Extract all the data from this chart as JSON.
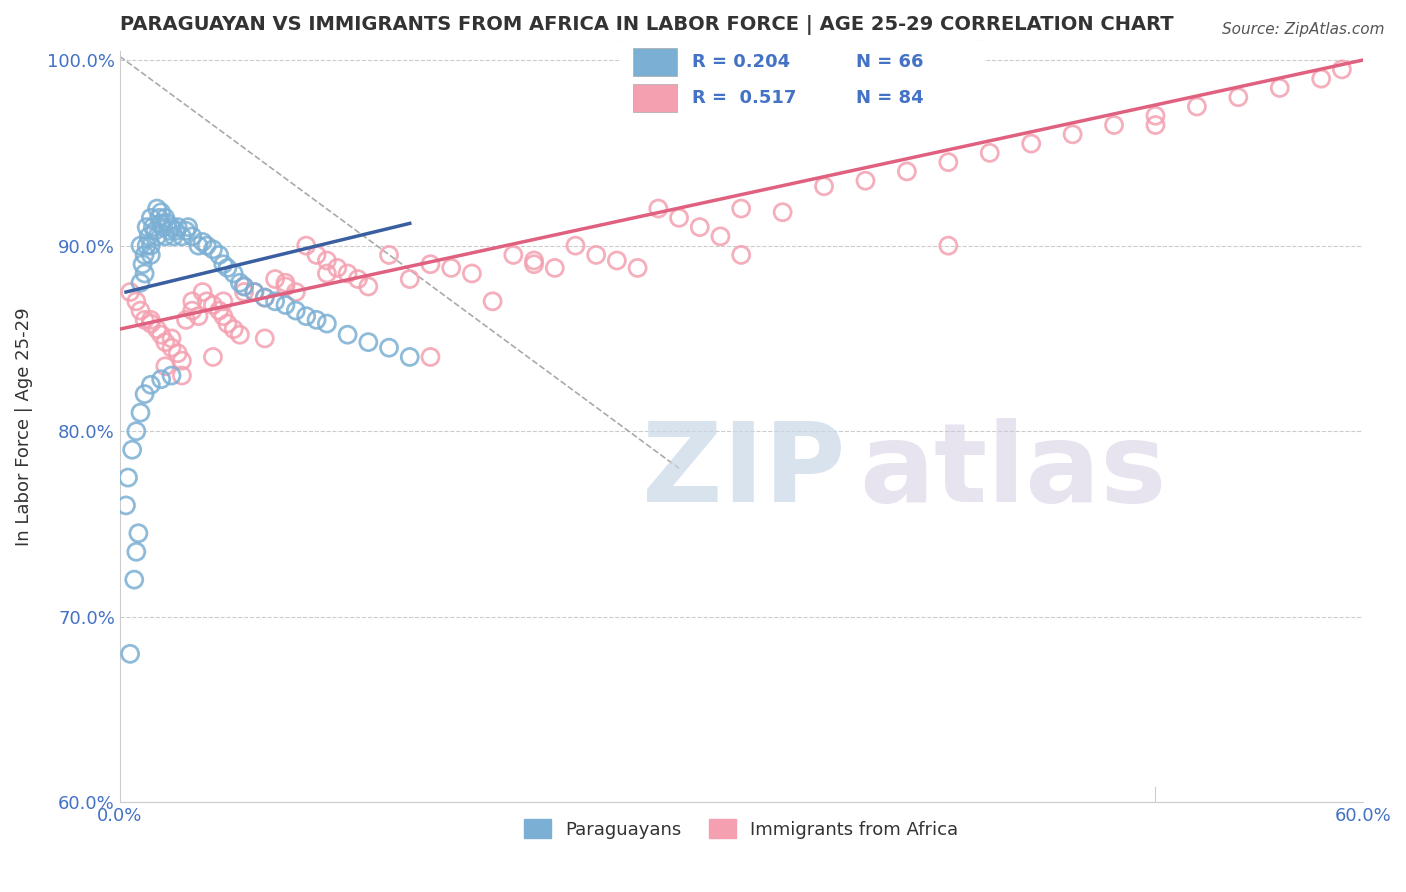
{
  "title": "PARAGUAYAN VS IMMIGRANTS FROM AFRICA IN LABOR FORCE | AGE 25-29 CORRELATION CHART",
  "source": "Source: ZipAtlas.com",
  "ylabel": "In Labor Force | Age 25-29",
  "xlim": [
    0.0,
    0.6
  ],
  "ylim": [
    0.6,
    1.005
  ],
  "xticks": [
    0.0,
    0.1,
    0.2,
    0.3,
    0.4,
    0.5,
    0.6
  ],
  "xticklabels": [
    "0.0%",
    "",
    "",
    "",
    "",
    "",
    "60.0%"
  ],
  "yticks": [
    0.6,
    0.7,
    0.8,
    0.9,
    1.0
  ],
  "yticklabels": [
    "60.0%",
    "70.0%",
    "80.0%",
    "90.0%",
    "100.0%"
  ],
  "R_blue": 0.204,
  "N_blue": 66,
  "R_pink": 0.517,
  "N_pink": 84,
  "blue_color": "#7bafd4",
  "pink_color": "#f4a0b0",
  "blue_line_color": "#3a5fa0",
  "pink_line_color": "#e06080",
  "legend_blue_label": "Paraguayans",
  "legend_pink_label": "Immigrants from Africa",
  "blue_scatter_x": [
    0.005,
    0.007,
    0.008,
    0.009,
    0.01,
    0.01,
    0.011,
    0.012,
    0.012,
    0.013,
    0.013,
    0.014,
    0.015,
    0.015,
    0.015,
    0.016,
    0.017,
    0.018,
    0.018,
    0.019,
    0.02,
    0.02,
    0.021,
    0.022,
    0.022,
    0.023,
    0.024,
    0.025,
    0.026,
    0.027,
    0.028,
    0.03,
    0.032,
    0.033,
    0.035,
    0.038,
    0.04,
    0.042,
    0.045,
    0.048,
    0.05,
    0.052,
    0.055,
    0.058,
    0.06,
    0.065,
    0.07,
    0.075,
    0.08,
    0.085,
    0.09,
    0.095,
    0.1,
    0.11,
    0.12,
    0.13,
    0.14,
    0.003,
    0.004,
    0.006,
    0.008,
    0.01,
    0.012,
    0.015,
    0.02,
    0.025
  ],
  "blue_scatter_y": [
    0.68,
    0.72,
    0.735,
    0.745,
    0.88,
    0.9,
    0.89,
    0.885,
    0.895,
    0.9,
    0.91,
    0.905,
    0.895,
    0.9,
    0.915,
    0.91,
    0.908,
    0.905,
    0.92,
    0.915,
    0.912,
    0.918,
    0.91,
    0.905,
    0.915,
    0.912,
    0.908,
    0.91,
    0.905,
    0.908,
    0.91,
    0.905,
    0.908,
    0.91,
    0.905,
    0.9,
    0.902,
    0.9,
    0.898,
    0.895,
    0.89,
    0.888,
    0.885,
    0.88,
    0.878,
    0.875,
    0.872,
    0.87,
    0.868,
    0.865,
    0.862,
    0.86,
    0.858,
    0.852,
    0.848,
    0.845,
    0.84,
    0.76,
    0.775,
    0.79,
    0.8,
    0.81,
    0.82,
    0.825,
    0.828,
    0.83
  ],
  "pink_scatter_x": [
    0.005,
    0.008,
    0.01,
    0.012,
    0.015,
    0.018,
    0.02,
    0.022,
    0.025,
    0.028,
    0.03,
    0.032,
    0.035,
    0.038,
    0.04,
    0.042,
    0.045,
    0.048,
    0.05,
    0.052,
    0.055,
    0.058,
    0.06,
    0.065,
    0.07,
    0.075,
    0.08,
    0.085,
    0.09,
    0.095,
    0.1,
    0.105,
    0.11,
    0.115,
    0.12,
    0.13,
    0.14,
    0.15,
    0.16,
    0.17,
    0.18,
    0.19,
    0.2,
    0.21,
    0.22,
    0.23,
    0.24,
    0.25,
    0.26,
    0.27,
    0.28,
    0.29,
    0.3,
    0.32,
    0.34,
    0.36,
    0.38,
    0.4,
    0.42,
    0.44,
    0.46,
    0.48,
    0.5,
    0.52,
    0.54,
    0.56,
    0.58,
    0.015,
    0.025,
    0.035,
    0.05,
    0.06,
    0.08,
    0.1,
    0.15,
    0.2,
    0.3,
    0.4,
    0.5,
    0.59,
    0.022,
    0.03,
    0.045,
    0.07
  ],
  "pink_scatter_y": [
    0.875,
    0.87,
    0.865,
    0.86,
    0.858,
    0.855,
    0.852,
    0.848,
    0.845,
    0.842,
    0.838,
    0.86,
    0.865,
    0.862,
    0.875,
    0.87,
    0.868,
    0.865,
    0.862,
    0.858,
    0.855,
    0.852,
    0.878,
    0.875,
    0.872,
    0.882,
    0.878,
    0.875,
    0.9,
    0.895,
    0.892,
    0.888,
    0.885,
    0.882,
    0.878,
    0.895,
    0.882,
    0.89,
    0.888,
    0.885,
    0.87,
    0.895,
    0.892,
    0.888,
    0.9,
    0.895,
    0.892,
    0.888,
    0.92,
    0.915,
    0.91,
    0.905,
    0.92,
    0.918,
    0.932,
    0.935,
    0.94,
    0.945,
    0.95,
    0.955,
    0.96,
    0.965,
    0.97,
    0.975,
    0.98,
    0.985,
    0.99,
    0.86,
    0.85,
    0.87,
    0.87,
    0.875,
    0.88,
    0.885,
    0.84,
    0.89,
    0.895,
    0.9,
    0.965,
    0.995,
    0.835,
    0.83,
    0.84,
    0.85
  ],
  "blue_trend_x": [
    0.003,
    0.14
  ],
  "blue_trend_y": [
    0.875,
    0.912
  ],
  "pink_trend_x": [
    0.0,
    0.6
  ],
  "pink_trend_y": [
    0.855,
    1.0
  ],
  "ref_line_x": [
    0.0,
    0.27
  ],
  "ref_line_y": [
    1.002,
    0.78
  ]
}
